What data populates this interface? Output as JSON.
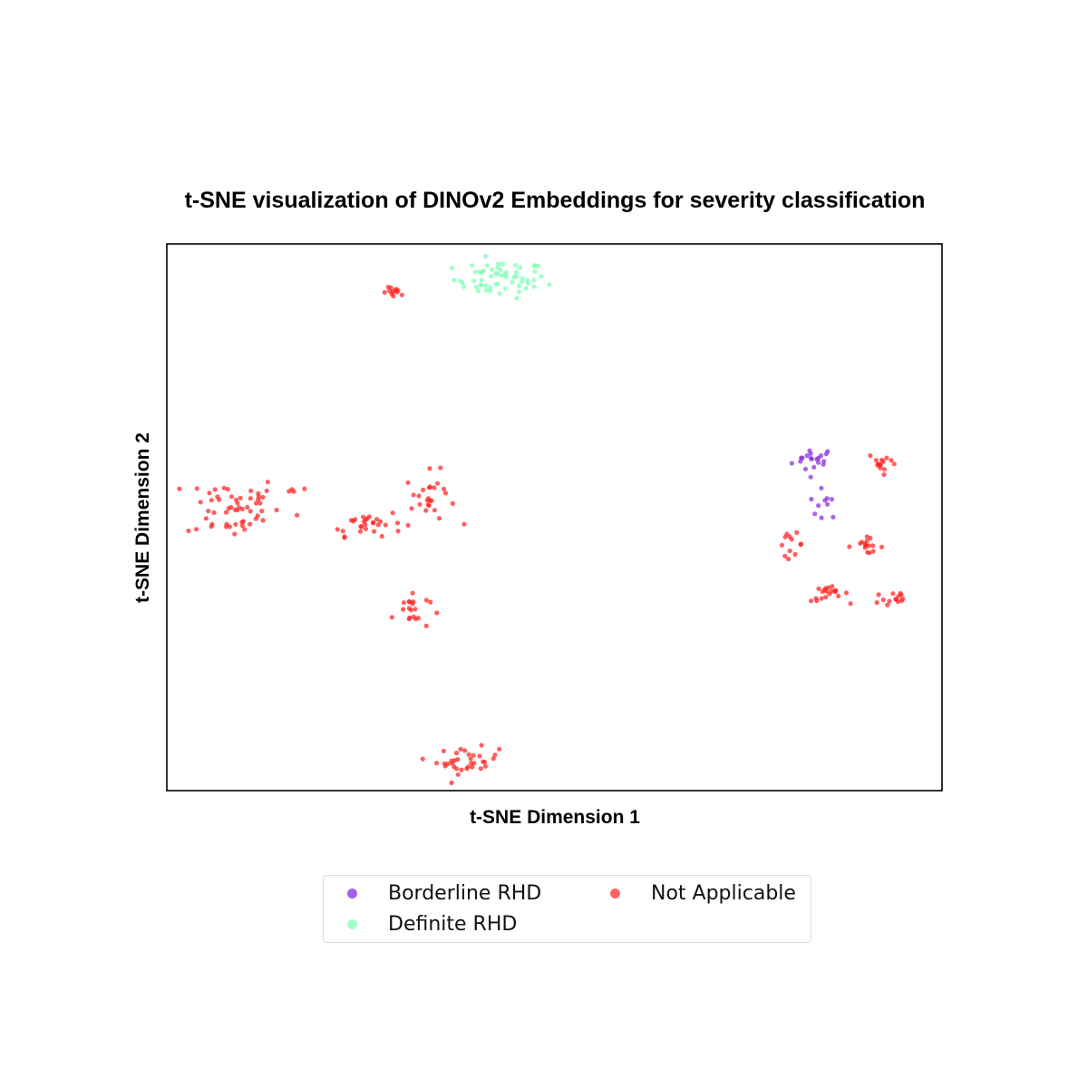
{
  "chart_data": {
    "type": "scatter",
    "title": "t-SNE visualization of DINOv2 Embeddings for severity classification",
    "xlabel": "t-SNE Dimension 1",
    "ylabel": "t-SNE Dimension 2",
    "ticks": "hidden",
    "grid": false,
    "legend_position": "bottom",
    "legend_columns": 2,
    "series": [
      {
        "name": "Borderline RHD",
        "color": "#8a2be2",
        "clusters": [
          {
            "cx": 0.835,
            "cy": 0.605,
            "sx": 0.014,
            "sy": 0.012,
            "n": 20
          },
          {
            "cx": 0.848,
            "cy": 0.525,
            "sx": 0.01,
            "sy": 0.014,
            "n": 10
          }
        ]
      },
      {
        "name": "Definite RHD",
        "color": "#7fffb4",
        "clusters": [
          {
            "cx": 0.43,
            "cy": 0.935,
            "sx": 0.03,
            "sy": 0.017,
            "n": 60
          }
        ]
      },
      {
        "name": "Not Applicable",
        "color": "#ff2222",
        "clusters": [
          {
            "cx": 0.295,
            "cy": 0.91,
            "sx": 0.008,
            "sy": 0.005,
            "n": 12
          },
          {
            "cx": 0.085,
            "cy": 0.52,
            "sx": 0.03,
            "sy": 0.03,
            "n": 55
          },
          {
            "cx": 0.175,
            "cy": 0.55,
            "sx": 0.008,
            "sy": 0.003,
            "n": 4
          },
          {
            "cx": 0.255,
            "cy": 0.49,
            "sx": 0.025,
            "sy": 0.012,
            "n": 30
          },
          {
            "cx": 0.34,
            "cy": 0.535,
            "sx": 0.016,
            "sy": 0.024,
            "n": 25
          },
          {
            "cx": 0.315,
            "cy": 0.33,
            "sx": 0.012,
            "sy": 0.018,
            "n": 20
          },
          {
            "cx": 0.388,
            "cy": 0.055,
            "sx": 0.02,
            "sy": 0.012,
            "n": 35
          },
          {
            "cx": 0.925,
            "cy": 0.6,
            "sx": 0.01,
            "sy": 0.01,
            "n": 14
          },
          {
            "cx": 0.805,
            "cy": 0.45,
            "sx": 0.008,
            "sy": 0.01,
            "n": 12
          },
          {
            "cx": 0.9,
            "cy": 0.448,
            "sx": 0.012,
            "sy": 0.007,
            "n": 16
          },
          {
            "cx": 0.855,
            "cy": 0.36,
            "sx": 0.012,
            "sy": 0.007,
            "n": 20
          },
          {
            "cx": 0.935,
            "cy": 0.35,
            "sx": 0.012,
            "sy": 0.01,
            "n": 14
          }
        ]
      }
    ]
  }
}
